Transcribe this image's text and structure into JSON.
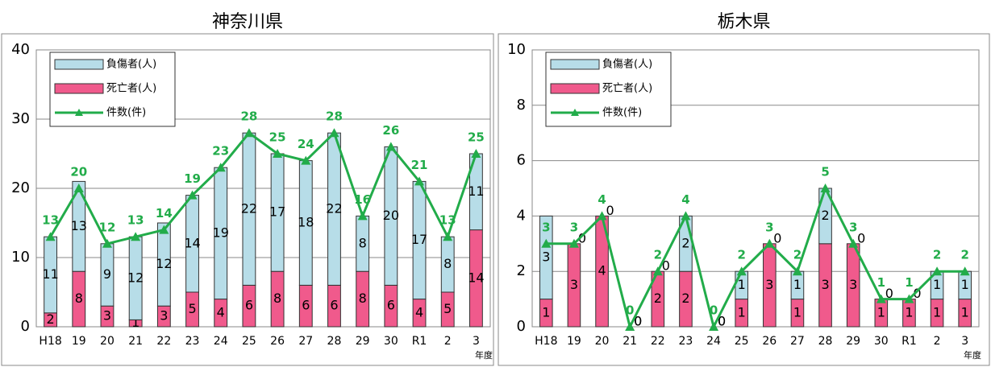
{
  "chart_data": [
    {
      "type": "bar",
      "title": "神奈川県",
      "xlabel": "年度",
      "categories": [
        "H18",
        "19",
        "20",
        "21",
        "22",
        "23",
        "24",
        "25",
        "26",
        "27",
        "28",
        "29",
        "30",
        "R1",
        "2",
        "3"
      ],
      "series": [
        {
          "name": "負傷者(人)",
          "type": "bar",
          "color": "#b7dde8",
          "values": [
            11,
            13,
            9,
            12,
            12,
            14,
            19,
            22,
            17,
            18,
            22,
            8,
            20,
            17,
            8,
            11
          ]
        },
        {
          "name": "死亡者(人)",
          "type": "bar",
          "color": "#f05a8c",
          "values": [
            2,
            8,
            3,
            1,
            3,
            5,
            4,
            6,
            8,
            6,
            6,
            8,
            6,
            4,
            5,
            14
          ]
        },
        {
          "name": "件数(件)",
          "type": "line",
          "color": "#22ac4a",
          "values": [
            13,
            20,
            12,
            13,
            14,
            19,
            23,
            28,
            25,
            24,
            28,
            16,
            26,
            21,
            13,
            25
          ]
        }
      ],
      "ylim": [
        0,
        40
      ],
      "yticks": [
        0,
        10,
        20,
        30,
        40
      ],
      "grid": true
    },
    {
      "type": "bar",
      "title": "栃木県",
      "xlabel": "年度",
      "categories": [
        "H18",
        "19",
        "20",
        "21",
        "22",
        "23",
        "24",
        "25",
        "26",
        "27",
        "28",
        "29",
        "30",
        "R1",
        "2",
        "3"
      ],
      "series": [
        {
          "name": "負傷者(人)",
          "type": "bar",
          "color": "#b7dde8",
          "values": [
            3,
            0,
            0,
            0,
            0,
            2,
            0,
            1,
            0,
            1,
            2,
            0,
            0,
            0,
            1,
            1
          ]
        },
        {
          "name": "死亡者(人)",
          "type": "bar",
          "color": "#f05a8c",
          "values": [
            1,
            3,
            4,
            0,
            2,
            2,
            0,
            1,
            3,
            1,
            3,
            3,
            1,
            1,
            1,
            1
          ]
        },
        {
          "name": "件数(件)",
          "type": "line",
          "color": "#22ac4a",
          "values": [
            3,
            3,
            4,
            0,
            2,
            4,
            0,
            2,
            3,
            2,
            5,
            3,
            1,
            1,
            2,
            2
          ]
        }
      ],
      "ylim": [
        0,
        10
      ],
      "yticks": [
        0,
        2,
        4,
        6,
        8,
        10
      ],
      "grid": true
    }
  ]
}
